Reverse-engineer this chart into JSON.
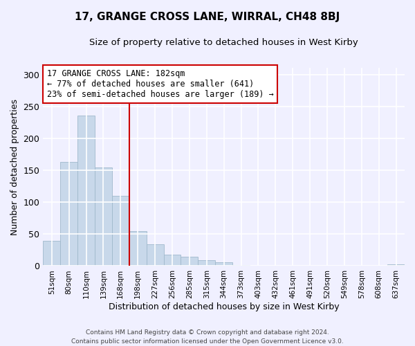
{
  "title": "17, GRANGE CROSS LANE, WIRRAL, CH48 8BJ",
  "subtitle": "Size of property relative to detached houses in West Kirby",
  "xlabel": "Distribution of detached houses by size in West Kirby",
  "ylabel": "Number of detached properties",
  "bar_color": "#c8d8ea",
  "bar_edge_color": "#a0b8cc",
  "categories": [
    "51sqm",
    "80sqm",
    "110sqm",
    "139sqm",
    "168sqm",
    "198sqm",
    "227sqm",
    "256sqm",
    "285sqm",
    "315sqm",
    "344sqm",
    "373sqm",
    "403sqm",
    "432sqm",
    "461sqm",
    "491sqm",
    "520sqm",
    "549sqm",
    "578sqm",
    "608sqm",
    "637sqm"
  ],
  "values": [
    39,
    163,
    236,
    154,
    110,
    55,
    34,
    18,
    15,
    9,
    6,
    2,
    1,
    0,
    0,
    0,
    0,
    0,
    0,
    0,
    3
  ],
  "vline_color": "#cc0000",
  "annotation_text_line1": "17 GRANGE CROSS LANE: 182sqm",
  "annotation_text_line2": "← 77% of detached houses are smaller (641)",
  "annotation_text_line3": "23% of semi-detached houses are larger (189) →",
  "ylim": [
    0,
    310
  ],
  "yticks": [
    0,
    50,
    100,
    150,
    200,
    250,
    300
  ],
  "footer_line1": "Contains HM Land Registry data © Crown copyright and database right 2024.",
  "footer_line2": "Contains public sector information licensed under the Open Government Licence v3.0.",
  "background_color": "#f0f0ff",
  "grid_color": "#ffffff",
  "vline_x_index": 4.5
}
